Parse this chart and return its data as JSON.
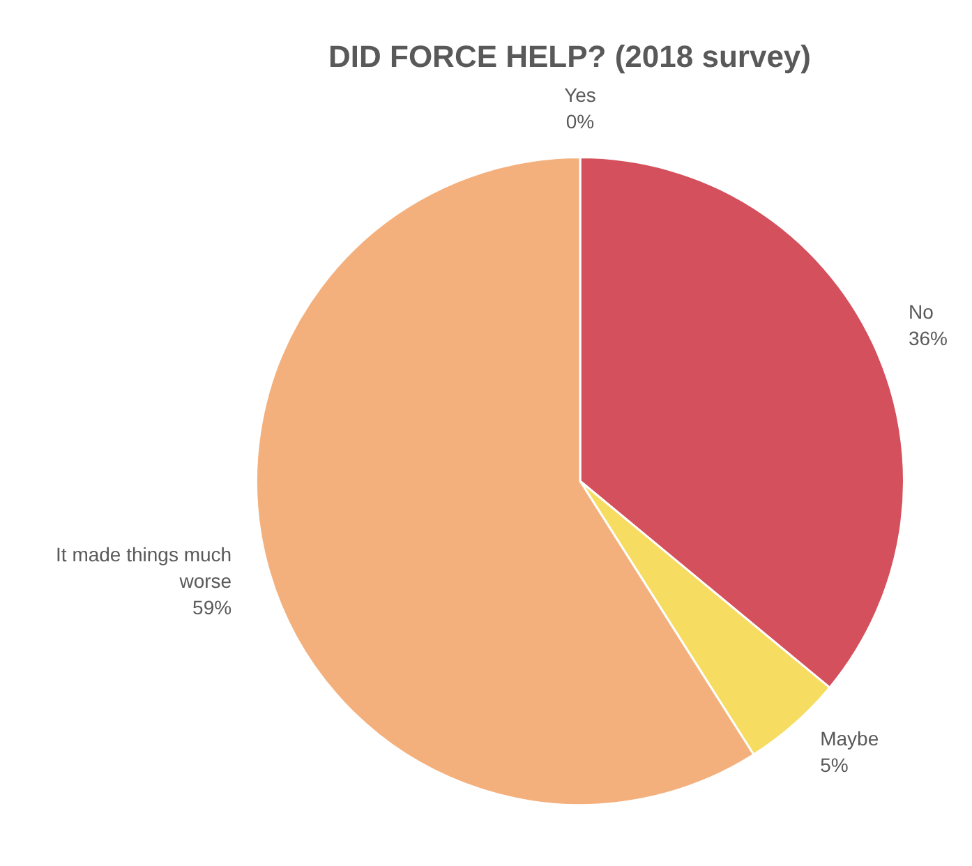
{
  "chart_data": {
    "type": "pie",
    "title": "DID FORCE HELP? (2018 survey)",
    "categories": [
      "Yes",
      "No",
      "Maybe",
      "It made things much worse"
    ],
    "values": [
      0,
      36,
      5,
      59
    ],
    "value_labels": [
      "0%",
      "36%",
      "5%",
      "59%"
    ],
    "colors": [
      "#70b060",
      "#d4505c",
      "#f6dc60",
      "#f4b07c"
    ],
    "legend": false
  }
}
